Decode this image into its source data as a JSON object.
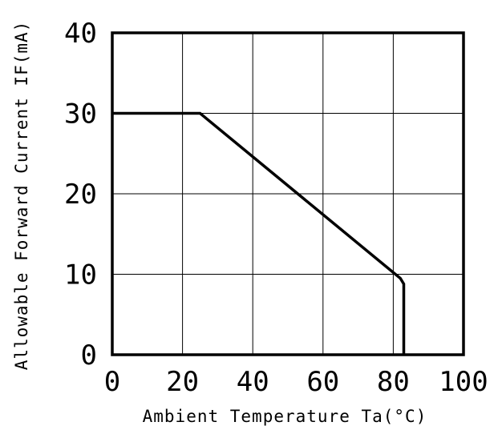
{
  "chart_data": {
    "type": "line",
    "title": "",
    "xlabel": "Ambient Temperature Ta(°C)",
    "ylabel": "Allowable Forward Current IF(mA)",
    "xlim": [
      0,
      100
    ],
    "ylim": [
      0,
      40
    ],
    "x_ticks": [
      "0",
      "20",
      "40",
      "60",
      "80",
      "100"
    ],
    "y_ticks": [
      "0",
      "10",
      "20",
      "30",
      "40"
    ],
    "grid": true,
    "legend": "none",
    "series": [
      {
        "x": [
          0,
          25,
          82,
          83,
          83
        ],
        "y": [
          30,
          30,
          9.5,
          8.8,
          0
        ]
      }
    ]
  }
}
